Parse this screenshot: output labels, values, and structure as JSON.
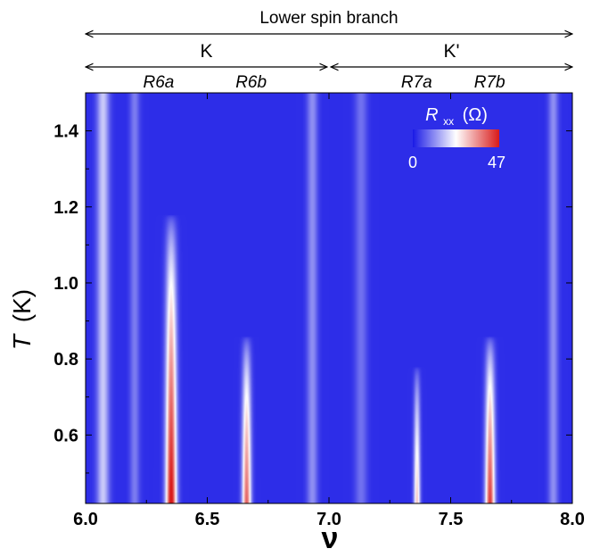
{
  "chart_data": {
    "type": "heatmap",
    "title": "",
    "xlabel": "ν",
    "ylabel_symbol": "T",
    "ylabel_unit": "(K)",
    "xlim": [
      6.0,
      8.0
    ],
    "ylim": [
      0.42,
      1.5
    ],
    "xticks": [
      6.0,
      6.5,
      7.0,
      7.5,
      8.0
    ],
    "xtick_labels": [
      "6.0",
      "6.5",
      "7.0",
      "7.5",
      "8.0"
    ],
    "yticks": [
      0.6,
      0.8,
      1.0,
      1.2,
      1.4
    ],
    "ytick_labels": [
      "0.6",
      "0.8",
      "1.0",
      "1.2",
      "1.4"
    ],
    "colorbar": {
      "quantity_symbol": "R",
      "quantity_subscript": "xx",
      "unit": "(Ω)",
      "min": 0,
      "max": 47,
      "min_label": "0",
      "max_label": "47",
      "colors": [
        "#1a1ae6",
        "#ffffff",
        "#d81a1a"
      ]
    },
    "annotations": {
      "top_span": {
        "label": "Lower spin branch",
        "x_range": [
          6.0,
          8.0
        ]
      },
      "valleys": [
        {
          "label": "K",
          "x_range": [
            6.0,
            7.0
          ]
        },
        {
          "label": "K'",
          "x_range": [
            7.0,
            8.0
          ]
        }
      ],
      "peaks": [
        {
          "label": "R6a",
          "x": 6.3
        },
        {
          "label": "R6b",
          "x": 6.68
        },
        {
          "label": "R7a",
          "x": 7.36
        },
        {
          "label": "R7b",
          "x": 7.66
        }
      ]
    },
    "peaks": [
      {
        "name": "R6a",
        "nu": 6.35,
        "rmax": 47,
        "t_end": 1.18,
        "width": 0.022
      },
      {
        "name": "R6b",
        "nu": 6.66,
        "rmax": 38,
        "t_end": 0.86,
        "width": 0.018
      },
      {
        "name": "R7a",
        "nu": 7.36,
        "rmax": 28,
        "t_end": 0.78,
        "width": 0.013
      },
      {
        "name": "R7b",
        "nu": 7.66,
        "rmax": 42,
        "t_end": 0.86,
        "width": 0.019
      }
    ],
    "background_bands": [
      {
        "nu": 6.07,
        "rmax": 16,
        "width": 0.025
      },
      {
        "nu": 6.2,
        "rmax": 8,
        "width": 0.02
      },
      {
        "nu": 6.93,
        "rmax": 10,
        "width": 0.022
      },
      {
        "nu": 7.13,
        "rmax": 7,
        "width": 0.025
      },
      {
        "nu": 7.92,
        "rmax": 10,
        "width": 0.02
      }
    ]
  }
}
